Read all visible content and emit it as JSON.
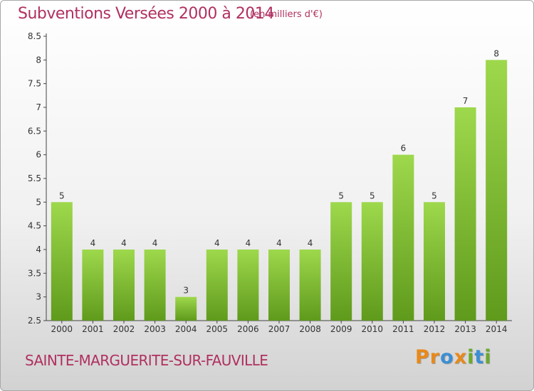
{
  "header": {
    "title": "Subventions Versées 2000 à 2014",
    "unit": "(en milliers d'€)"
  },
  "footer": {
    "commune": "SAINTE-MARGUERITE-SUR-FAUVILLE",
    "logo_letters": [
      "P",
      "r",
      "o",
      "x",
      "i",
      "t",
      "i"
    ],
    "logo_colors": [
      "#e8891a",
      "#e8891a",
      "#3b8fd4",
      "#e8891a",
      "#6aaa2a",
      "#3b8fd4",
      "#6aaa2a"
    ]
  },
  "chart_data": {
    "type": "bar",
    "title": "Subventions Versées 2000 à 2014",
    "subtitle": "(en milliers d'€)",
    "categories": [
      "2000",
      "2001",
      "2002",
      "2003",
      "2004",
      "2005",
      "2006",
      "2007",
      "2008",
      "2009",
      "2010",
      "2011",
      "2012",
      "2013",
      "2014"
    ],
    "values": [
      5,
      4,
      4,
      4,
      3,
      4,
      4,
      4,
      4,
      5,
      5,
      6,
      5,
      7,
      8
    ],
    "value_labels": [
      "5",
      "4",
      "4",
      "4",
      "3",
      "4",
      "4",
      "4",
      "4",
      "5",
      "5",
      "6",
      "5",
      "7",
      "8"
    ],
    "ylim": [
      2.5,
      8.5
    ],
    "yticks": [
      2.5,
      3,
      3.5,
      4,
      4.5,
      5,
      5.5,
      6,
      6.5,
      7,
      7.5,
      8,
      8.5
    ],
    "ytick_labels": [
      "2.5",
      "3",
      "3.5",
      "4",
      "4.5",
      "5",
      "5.5",
      "6",
      "6.5",
      "7",
      "7.5",
      "8",
      "8.5"
    ],
    "grid": false,
    "bar_color": "#7cbd34"
  }
}
